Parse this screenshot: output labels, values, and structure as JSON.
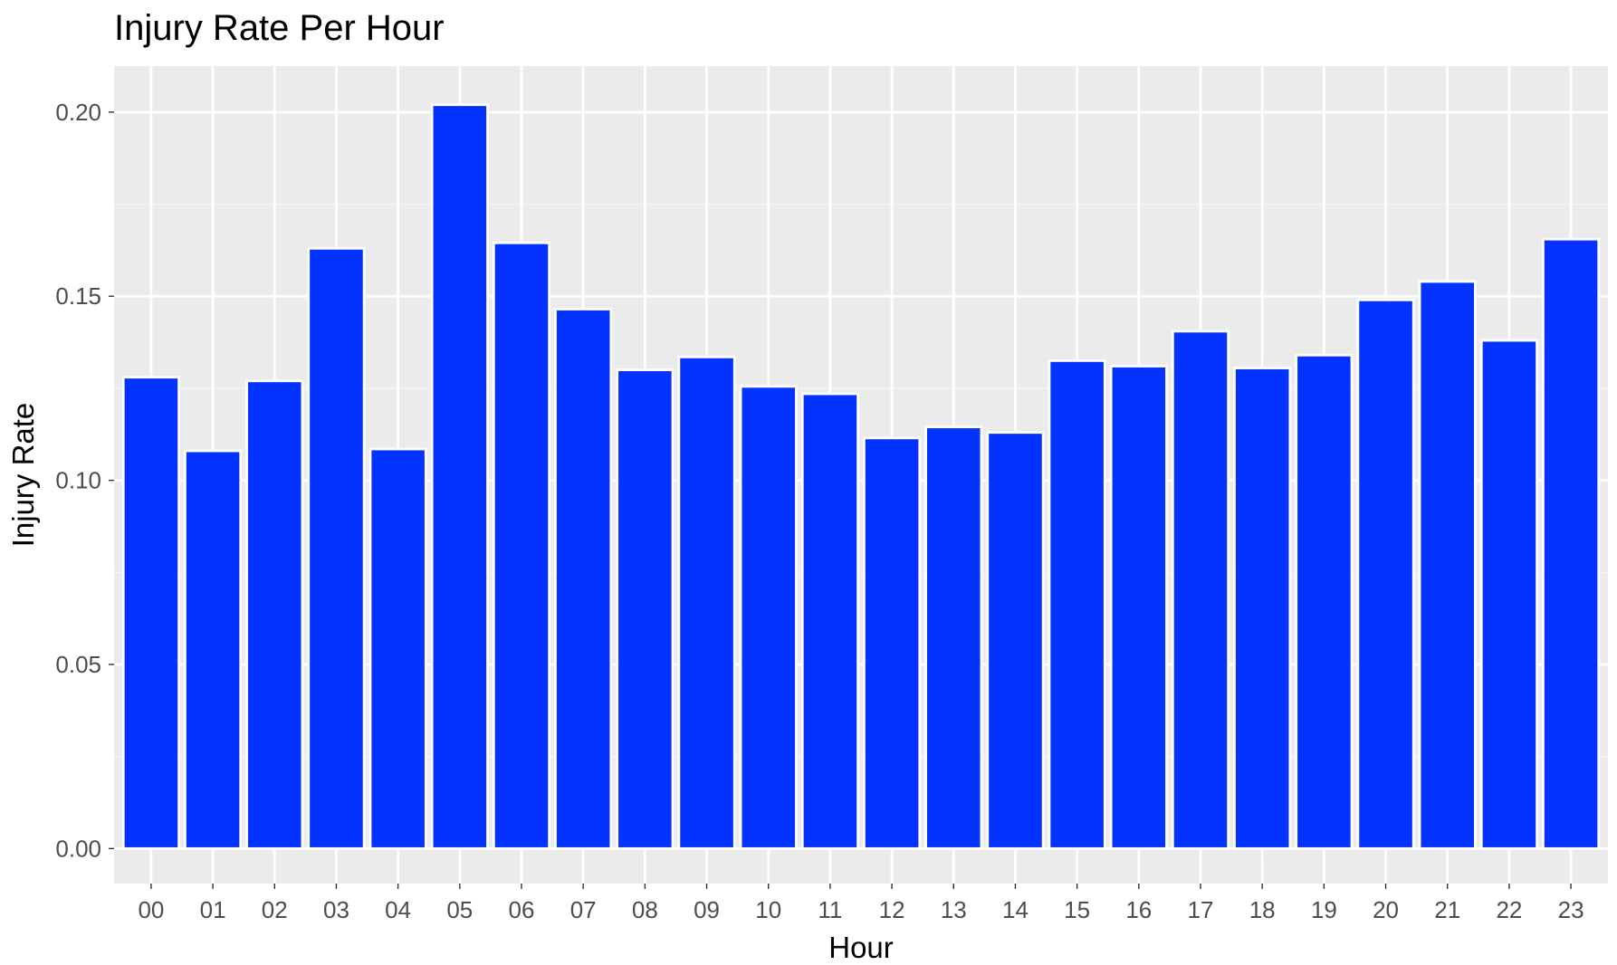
{
  "chart_data": {
    "type": "bar",
    "title": "Injury Rate Per Hour",
    "xlabel": "Hour",
    "ylabel": "Injury Rate",
    "categories": [
      "00",
      "01",
      "02",
      "03",
      "04",
      "05",
      "06",
      "07",
      "08",
      "09",
      "10",
      "11",
      "12",
      "13",
      "14",
      "15",
      "16",
      "17",
      "18",
      "19",
      "20",
      "21",
      "22",
      "23"
    ],
    "values": [
      0.128,
      0.108,
      0.127,
      0.163,
      0.1085,
      0.202,
      0.1645,
      0.1465,
      0.13,
      0.1335,
      0.1255,
      0.1235,
      0.1115,
      0.1145,
      0.113,
      0.1325,
      0.131,
      0.1405,
      0.1305,
      0.134,
      0.149,
      0.154,
      0.138,
      0.1655
    ],
    "ylim": [
      -0.0095,
      0.2125
    ],
    "yticks": [
      0.0,
      0.05,
      0.1,
      0.15,
      0.2
    ],
    "ytick_labels": [
      "0.00",
      "0.05",
      "0.10",
      "0.15",
      "0.20"
    ],
    "grid": true,
    "legend": "none",
    "colors": {
      "bar_fill": "#0433ff",
      "bar_outline": "#ffffff",
      "panel_background": "#ebebeb",
      "grid_major": "#ffffff",
      "grid_minor": "#f5f5f5"
    }
  }
}
